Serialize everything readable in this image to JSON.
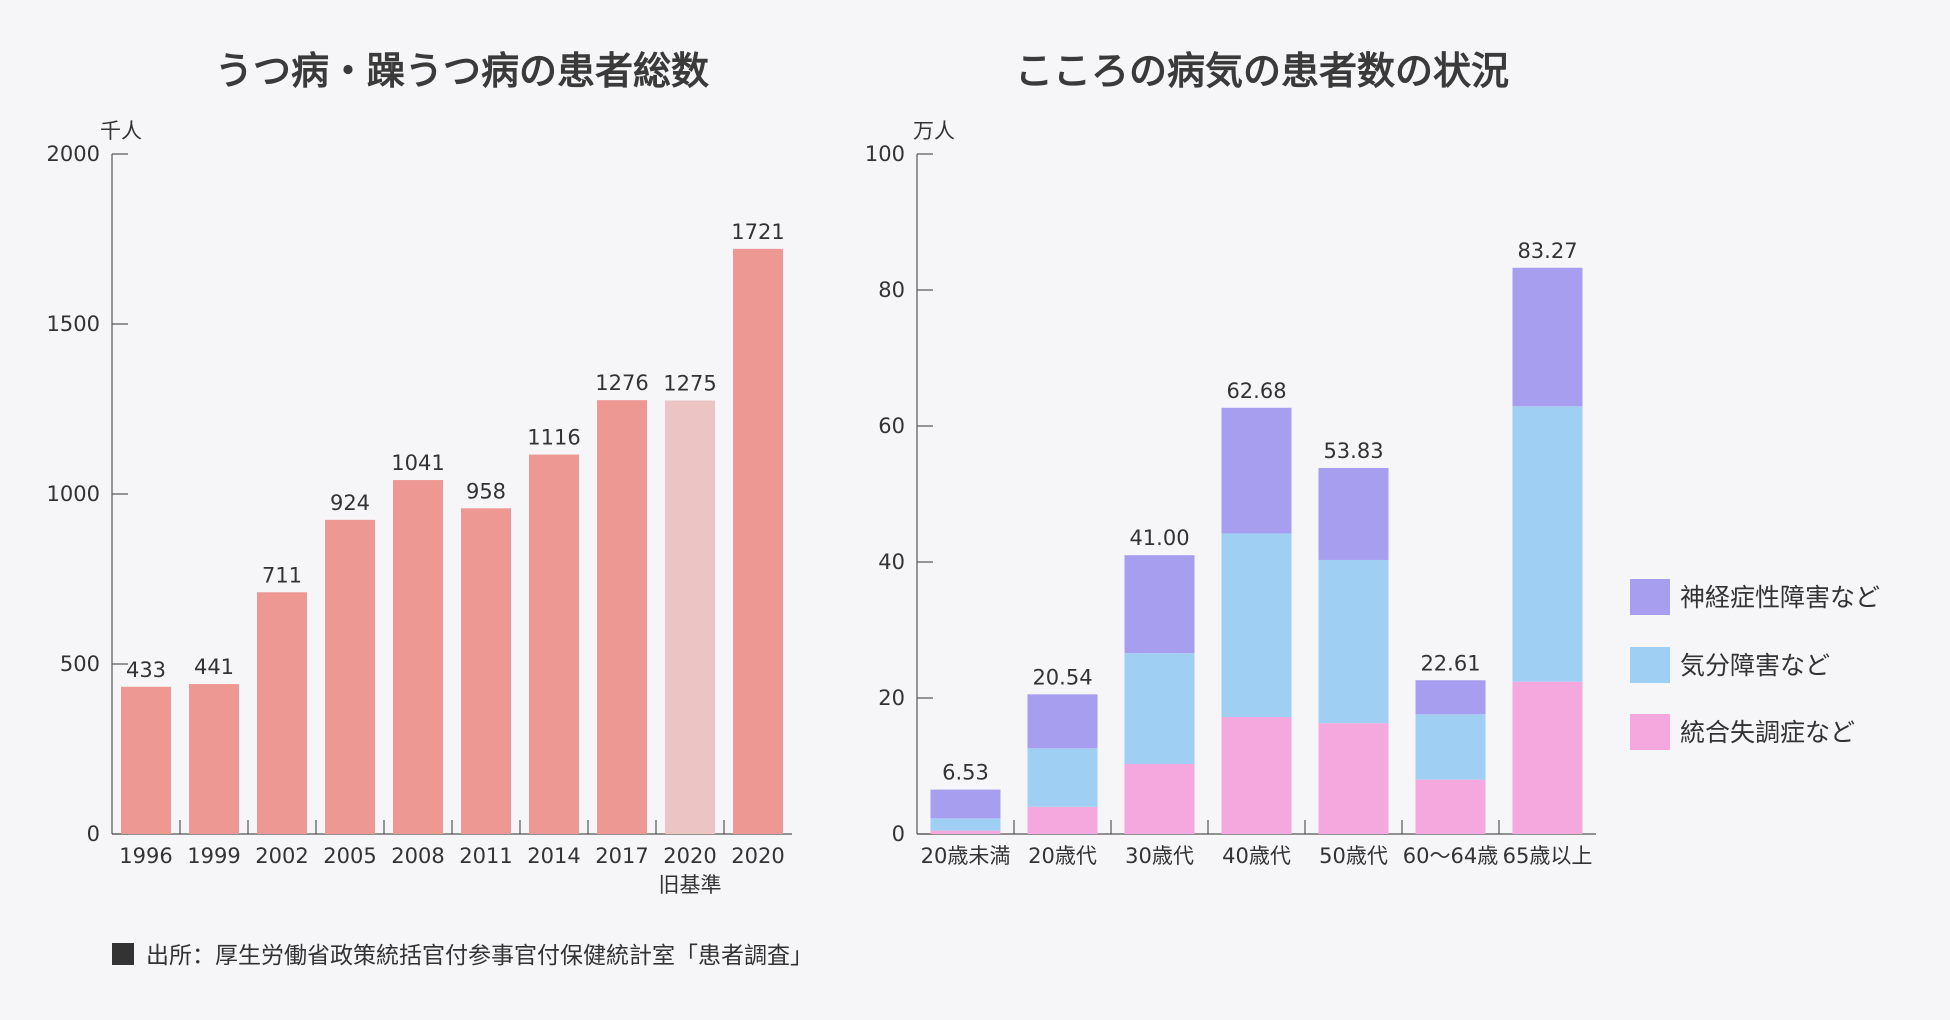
{
  "left_title": "うつ病・躁うつ病の患者総数",
  "right_title": "こころの病気の患者数の状況",
  "source_text": "出所：厚生労働省政策統括官付参事官付保健統計室「患者調査」",
  "colors": {
    "bar": "#ee9894",
    "bar_old": "#edc4c4",
    "neurosis": "#a89ef0",
    "mood": "#9fcff2",
    "schizo": "#f4a8de",
    "axis": "#555555",
    "bullet": "#333333"
  },
  "chart_data": [
    {
      "type": "bar",
      "title": "うつ病・躁うつ病の患者総数",
      "ylabel": "千人",
      "ylim": [
        0,
        2000
      ],
      "yticks": [
        0,
        500,
        1000,
        1500,
        2000
      ],
      "categories": [
        "1996",
        "1999",
        "2002",
        "2005",
        "2008",
        "2011",
        "2014",
        "2017",
        "2020",
        "2020"
      ],
      "category_sublabels": [
        "",
        "",
        "",
        "",
        "",
        "",
        "",
        "",
        "旧基準",
        ""
      ],
      "values": [
        433,
        441,
        711,
        924,
        1041,
        958,
        1116,
        1276,
        1275,
        1721
      ],
      "highlight_old_basis_index": 8
    },
    {
      "type": "bar",
      "stacked": true,
      "title": "こころの病気の患者数の状況",
      "ylabel": "万人",
      "ylim": [
        0,
        100
      ],
      "yticks": [
        0,
        20,
        40,
        60,
        80,
        100
      ],
      "categories": [
        "20歳未満",
        "20歳代",
        "30歳代",
        "40歳代",
        "50歳代",
        "60～64歳",
        "65歳以上"
      ],
      "totals": [
        "6.53",
        "20.54",
        "41.00",
        "62.68",
        "53.83",
        "22.61",
        "83.27"
      ],
      "series": [
        {
          "name": "統合失調症など",
          "values": [
            0.5,
            4.0,
            10.3,
            17.2,
            16.3,
            8.0,
            22.4
          ]
        },
        {
          "name": "気分障害など",
          "values": [
            1.8,
            8.6,
            16.3,
            27.0,
            24.0,
            9.6,
            40.5
          ]
        },
        {
          "name": "神経症性障害など",
          "values": [
            4.23,
            7.94,
            14.4,
            18.48,
            13.53,
            5.01,
            20.37
          ]
        }
      ],
      "legend": [
        "神経症性障害など",
        "気分障害など",
        "統合失調症など"
      ],
      "legend_position": "right"
    }
  ]
}
